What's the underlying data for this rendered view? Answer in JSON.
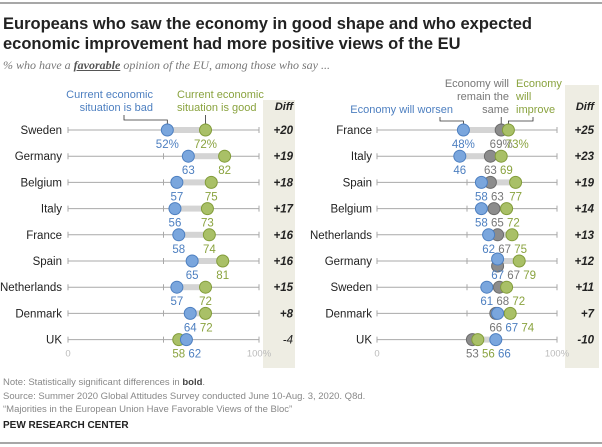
{
  "title": "Europeans who saw the economy in good shape and who expected economic improvement had more positive views of the EU",
  "subtitle": {
    "prefix": "% who have a ",
    "emphasis": "favorable",
    "suffix": " opinion of the EU, among those who say ..."
  },
  "chart_data": [
    {
      "type": "dot-plot",
      "xlim": [
        0,
        100
      ],
      "axis_labels": {
        "min": "0",
        "max": "100%"
      },
      "diff_header": "Diff",
      "series": [
        {
          "key": "bad",
          "name": "Current economic situation is bad",
          "label_lines": [
            "Current economic",
            "situation is bad"
          ],
          "color": "#7aa6dd",
          "stroke": "#4d7fc0",
          "text_color": "#4d7fc0"
        },
        {
          "key": "good",
          "name": "Current economic situation is good",
          "label_lines": [
            "Current economic",
            "situation is good"
          ],
          "color": "#a9c067",
          "stroke": "#829c3a",
          "text_color": "#8aa33f"
        }
      ],
      "rows": [
        {
          "country": "Sweden",
          "bad": 52,
          "good": 72,
          "diff": "+20",
          "significant": true
        },
        {
          "country": "Germany",
          "bad": 63,
          "good": 82,
          "diff": "+19",
          "significant": true
        },
        {
          "country": "Belgium",
          "bad": 57,
          "good": 75,
          "diff": "+18",
          "significant": true
        },
        {
          "country": "Italy",
          "bad": 56,
          "good": 73,
          "diff": "+17",
          "significant": true
        },
        {
          "country": "France",
          "bad": 58,
          "good": 74,
          "diff": "+16",
          "significant": true
        },
        {
          "country": "Spain",
          "bad": 65,
          "good": 81,
          "diff": "+16",
          "significant": true
        },
        {
          "country": "Netherlands",
          "bad": 57,
          "good": 72,
          "diff": "+15",
          "significant": true
        },
        {
          "country": "Denmark",
          "bad": 64,
          "good": 72,
          "diff": "+8",
          "significant": true
        },
        {
          "country": "UK",
          "bad": 62,
          "good": 58,
          "diff": "-4",
          "significant": false
        }
      ]
    },
    {
      "type": "dot-plot",
      "xlim": [
        0,
        100
      ],
      "axis_labels": {
        "min": "0",
        "max": "100%"
      },
      "diff_header": "Diff",
      "series": [
        {
          "key": "worsen",
          "name": "Economy will worsen",
          "label_lines": [
            "Economy will worsen"
          ],
          "color": "#7aa6dd",
          "stroke": "#4d7fc0",
          "text_color": "#4d7fc0"
        },
        {
          "key": "same",
          "name": "Economy will remain the same",
          "label_lines": [
            "Economy will",
            "remain the",
            "same"
          ],
          "color": "#8c8c8c",
          "stroke": "#6b6b6b",
          "text_color": "#777777"
        },
        {
          "key": "improve",
          "name": "Economy will improve",
          "label_lines": [
            "Economy",
            "will",
            "improve"
          ],
          "color": "#a9c067",
          "stroke": "#829c3a",
          "text_color": "#8aa33f"
        }
      ],
      "rows": [
        {
          "country": "France",
          "worsen": 48,
          "same": 69,
          "improve": 73,
          "diff": "+25",
          "significant": true
        },
        {
          "country": "Italy",
          "worsen": 46,
          "same": 63,
          "improve": 69,
          "diff": "+23",
          "significant": true
        },
        {
          "country": "Spain",
          "worsen": 58,
          "same": 63,
          "improve": 77,
          "diff": "+19",
          "significant": true
        },
        {
          "country": "Belgium",
          "worsen": 58,
          "same": 65,
          "improve": 72,
          "diff": "+14",
          "significant": true
        },
        {
          "country": "Netherlands",
          "worsen": 62,
          "same": 67,
          "improve": 75,
          "diff": "+13",
          "significant": true
        },
        {
          "country": "Germany",
          "worsen": 67,
          "same": 67,
          "improve": 79,
          "diff": "+12",
          "significant": true
        },
        {
          "country": "Sweden",
          "worsen": 61,
          "same": 68,
          "improve": 72,
          "diff": "+11",
          "significant": true
        },
        {
          "country": "Denmark",
          "worsen": 67,
          "same": 66,
          "improve": 74,
          "diff": "+7",
          "significant": true
        },
        {
          "country": "UK",
          "worsen": 66,
          "same": 53,
          "improve": 56,
          "diff": "-10",
          "significant": true
        }
      ]
    }
  ],
  "footer": {
    "note_prefix": "Note: Statistically significant differences in ",
    "note_bold": "bold",
    "note_suffix": ".",
    "source": "Source: Summer 2020 Global Attitudes Survey conducted June 10-Aug. 3, 2020. Q8d.",
    "report": "“Majorities in the European Union Have Favorable Views of the Bloc”",
    "brand": "PEW RESEARCH CENTER"
  }
}
